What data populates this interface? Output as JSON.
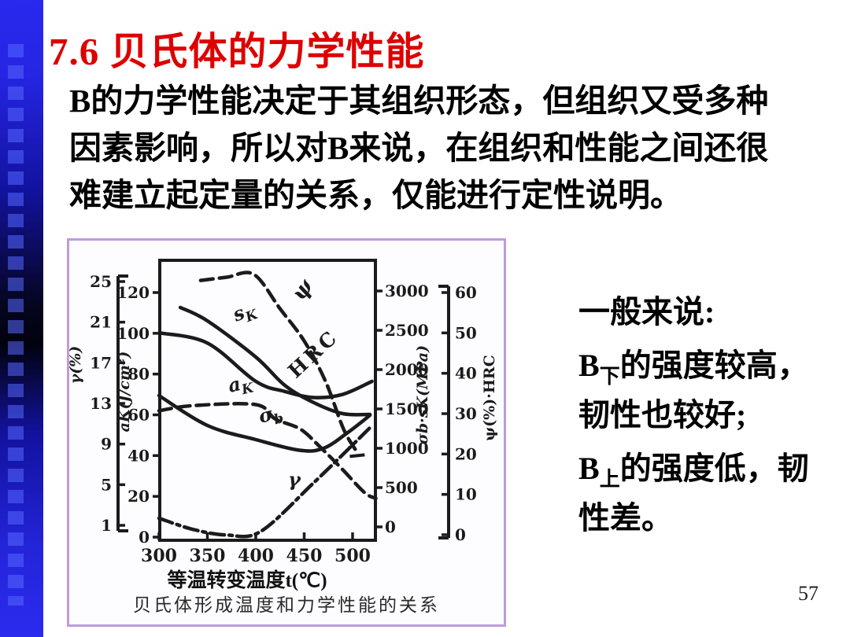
{
  "slide": {
    "title": "7.6 贝氏体的力学性能",
    "page_number": "57"
  },
  "body": {
    "lines": [
      "B的力学性能决定于其组织形态，但组织又受多种",
      "因素影响，所以对B来说，在组织和性能之间还很",
      "难建立起定量的关系，仅能进行定性说明。"
    ]
  },
  "notes": {
    "intro": "一般来说:",
    "b_lower": {
      "b": "B",
      "sub": "下",
      "line1_rest": "的强度较高，",
      "line2": "韧性也较好;"
    },
    "b_upper": {
      "b": "B",
      "sub": "上",
      "line1_rest": "的强度低，韧",
      "line2": "性差。"
    }
  },
  "colors": {
    "title_red": "#dd0000",
    "accent_bar_blue": "#2b2bee",
    "figure_border": "#c09ade",
    "chart_ink": "#1b1b1b"
  },
  "chart_data": {
    "type": "line",
    "title": "贝氏体形成温度和力学性能的关系",
    "xlabel": "等温转变温度t(℃)",
    "x_ticks": [
      300,
      350,
      400,
      450,
      500
    ],
    "x_range": [
      300,
      523
    ],
    "grid": false,
    "legend": "curve labels inline",
    "axes": {
      "gamma_left": {
        "label": "γ(%)",
        "side": "outer-left",
        "ticks": [
          1,
          5,
          9,
          13,
          17,
          21,
          25
        ],
        "range": [
          1,
          25
        ]
      },
      "aK_left": {
        "label": "aK(J/cm²)",
        "side": "inner-left",
        "ticks": [
          0,
          20,
          40,
          60,
          80,
          100,
          120
        ],
        "range": [
          0,
          120
        ]
      },
      "mpa_right": {
        "label": "σb·sK(MPa)",
        "side": "inner-right",
        "ticks": [
          0,
          500,
          1000,
          1500,
          2000,
          2500,
          3000
        ],
        "range": [
          0,
          3000
        ]
      },
      "outer_right": {
        "label": "ψ(%)·HRC",
        "side": "outer-right",
        "ticks": [
          0,
          10,
          20,
          30,
          40,
          50,
          60
        ],
        "range": [
          0,
          60
        ]
      }
    },
    "series": [
      {
        "name": "psi",
        "label": {
          "main": "ψ"
        },
        "axis": "outer_right",
        "style": "dashed",
        "points": [
          [
            343,
            63
          ],
          [
            370,
            63.8
          ],
          [
            398,
            64.5
          ],
          [
            425,
            56
          ],
          [
            450,
            48
          ],
          [
            472,
            38
          ],
          [
            491,
            26
          ],
          [
            506,
            20
          ]
        ]
      },
      {
        "name": "sK",
        "label": {
          "main": "s",
          "sub": "K"
        },
        "axis": "mpa_right",
        "style": "solid",
        "points": [
          [
            322,
            2790
          ],
          [
            350,
            2620
          ],
          [
            400,
            2160
          ],
          [
            430,
            1800
          ],
          [
            460,
            1580
          ],
          [
            490,
            1440
          ],
          [
            518,
            1430
          ]
        ]
      },
      {
        "name": "HRC",
        "label": {
          "main": "HRC"
        },
        "axis": "outer_right",
        "style": "solid",
        "points": [
          [
            301,
            50
          ],
          [
            350,
            47.5
          ],
          [
            400,
            38
          ],
          [
            430,
            35.5
          ],
          [
            460,
            34
          ],
          [
            490,
            34.8
          ],
          [
            520,
            38
          ]
        ]
      },
      {
        "name": "aK",
        "label": {
          "main": "a",
          "sub": "K"
        },
        "axis": "aK_left",
        "style": "dashed",
        "points": [
          [
            300,
            62
          ],
          [
            335,
            64.5
          ],
          [
            400,
            65
          ],
          [
            420,
            58
          ],
          [
            446,
            53
          ],
          [
            467,
            44
          ],
          [
            488,
            34
          ],
          [
            512,
            22
          ],
          [
            524,
            19
          ]
        ]
      },
      {
        "name": "sigma_b",
        "label": {
          "main": "σ",
          "sub": "b"
        },
        "axis": "mpa_right",
        "style": "solid",
        "points": [
          [
            300,
            1670
          ],
          [
            350,
            1290
          ],
          [
            400,
            1110
          ],
          [
            445,
            975
          ],
          [
            470,
            1000
          ],
          [
            495,
            1200
          ],
          [
            518,
            1420
          ]
        ]
      },
      {
        "name": "gamma",
        "label": {
          "main": "γ"
        },
        "axis": "gamma_left",
        "style": "dashdot",
        "points": [
          [
            300,
            1.7
          ],
          [
            335,
            0.6
          ],
          [
            370,
            0.05
          ],
          [
            405,
            0.4
          ],
          [
            460,
            5.2
          ],
          [
            520,
            10.8
          ]
        ]
      }
    ]
  }
}
